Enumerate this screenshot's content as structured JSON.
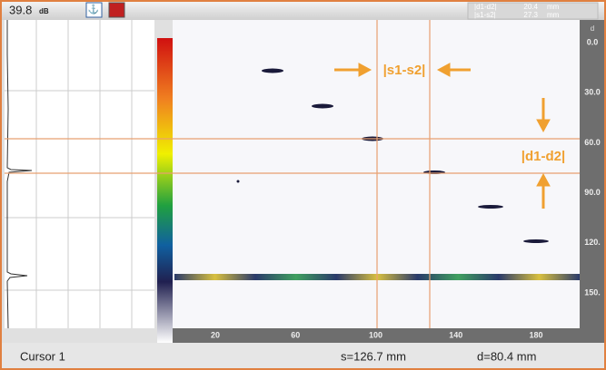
{
  "header": {
    "gain": "39.8",
    "gain_unit": "dB",
    "readouts": [
      {
        "label": "|d1-d2|",
        "value": "20.4",
        "unit": "mm"
      },
      {
        "label": "|s1-s2|",
        "value": "27.3",
        "unit": "mm"
      }
    ]
  },
  "depth_axis": {
    "label": "d",
    "ticks": [
      "0.0",
      "30.0",
      "60.0",
      "90.0",
      "120.",
      "150."
    ]
  },
  "scan_axis": {
    "ticks": [
      "20",
      "60",
      "100",
      "140",
      "180"
    ]
  },
  "annotations": {
    "horizontal": "|s1-s2|",
    "vertical": "|d1-d2|"
  },
  "footer": {
    "cursor": "Cursor 1",
    "s": "s=126.7 mm",
    "d": "d=80.4 mm"
  }
}
